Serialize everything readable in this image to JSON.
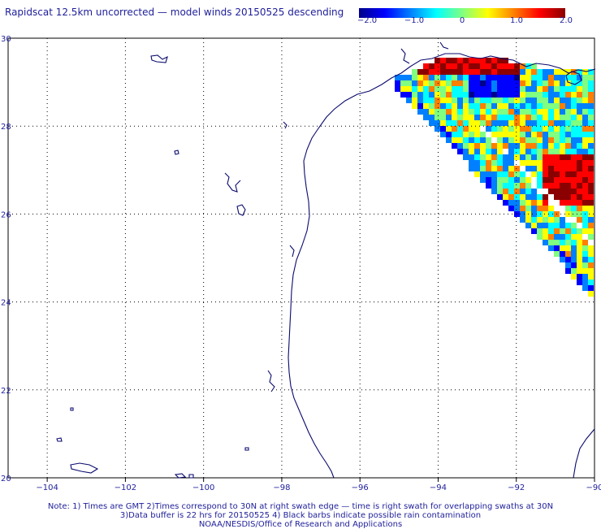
{
  "title": "Rapidscat 12.5km uncorrected — model winds 20150525 descending",
  "colorbar": {
    "ticks": [
      "−2.0",
      "−1.0",
      "0",
      "1.0",
      "2.0"
    ],
    "values": [
      -2.0,
      -1.0,
      0,
      1.0,
      2.0
    ],
    "colors": [
      "#00008b",
      "#0000ff",
      "#0080ff",
      "#00ffff",
      "#80ff80",
      "#ffff00",
      "#ff8000",
      "#ff0000",
      "#8b0000"
    ]
  },
  "map": {
    "lon_range": [
      -105,
      -90
    ],
    "lat_range": [
      20,
      30
    ],
    "lon_ticks": [
      "−104",
      "−102",
      "−100",
      "−98",
      "−96",
      "−94",
      "−92",
      "−90"
    ],
    "lon_values": [
      -104,
      -102,
      -100,
      -98,
      -96,
      -94,
      -92,
      -90
    ],
    "lat_ticks": [
      "30",
      "28",
      "26",
      "24",
      "22",
      "20"
    ],
    "lat_values": [
      30,
      28,
      26,
      24,
      22,
      20
    ],
    "coast_color": "#0a0a6e",
    "grid_color": "#000000"
  },
  "notes": {
    "line1": "Note: 1) Times are GMT 2)Times correspond to 30N at right swath edge — time is right swath for overlapping swaths at 30N",
    "line2": "3)Data buffer is 22 hrs for 20150525 4) Black barbs indicate possible rain contamination",
    "line3": "NOAA/NESDIS/Office of Research and Applications"
  }
}
